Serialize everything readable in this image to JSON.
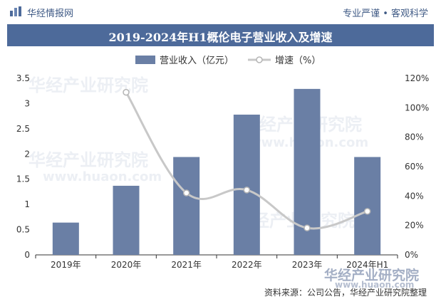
{
  "header": {
    "site_name": "华经情报网",
    "slogan": "专业严谨 • 客观科学",
    "brand_color": "#4d6a9a"
  },
  "title": "2019-2024年H1概伦电子营业收入及增速",
  "watermark": {
    "cn": "华经产业研究院",
    "url": "www.huaon.com"
  },
  "source": "资料来源：公司公告，华经产业研究院整理",
  "chart_data": {
    "type": "bar",
    "categories": [
      "2019年",
      "2020年",
      "2021年",
      "2022年",
      "2023年",
      "2024年H1"
    ],
    "series": [
      {
        "name": "营业收入（亿元）",
        "type": "bar",
        "axis": "left",
        "color": "#6a7fa5",
        "values": [
          0.64,
          1.37,
          1.94,
          2.78,
          3.29,
          1.94
        ]
      },
      {
        "name": "增速（%）",
        "type": "line",
        "axis": "right",
        "color": "#c8c8c8",
        "values": [
          null,
          110.5,
          42.1,
          44.1,
          18.3,
          29.6
        ]
      }
    ],
    "y_left": {
      "min": 0,
      "max": 3.5,
      "ticks": [
        "0",
        "0.5",
        "1",
        "1.5",
        "2",
        "2.5",
        "3",
        "3.5"
      ]
    },
    "y_right": {
      "min": 0,
      "max": 120,
      "ticks": [
        "0%",
        "20%",
        "40%",
        "60%",
        "80%",
        "100%",
        "120%"
      ]
    },
    "legend": {
      "position": "top-center"
    },
    "grid": false
  }
}
